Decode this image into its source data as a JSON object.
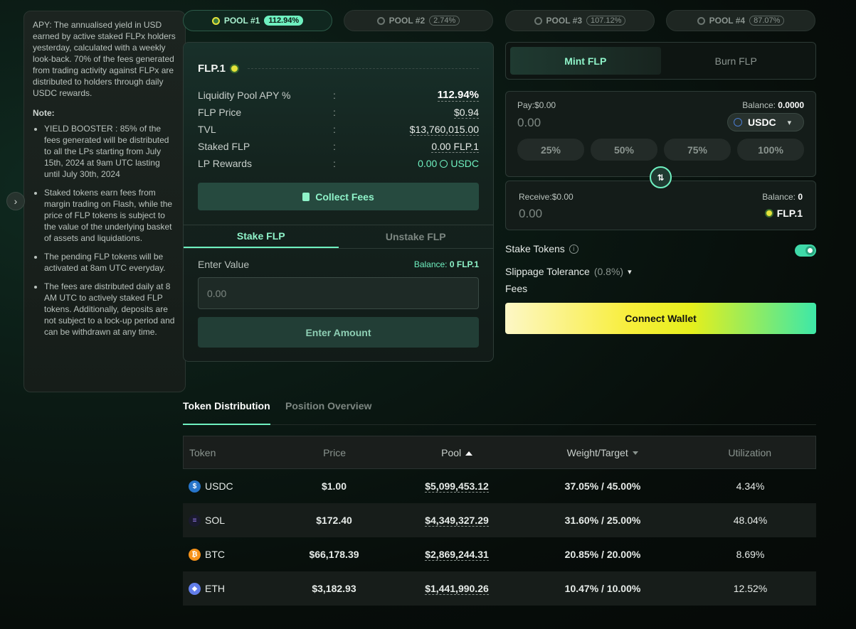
{
  "info": {
    "apy_text": "APY: The annualised yield in USD earned by active staked FLPx holders yesterday, calculated with a weekly look-back. 70% of the fees generated from trading activity against FLPx are distributed to holders through daily USDC rewards.",
    "note_title": "Note:",
    "notes": [
      "YIELD BOOSTER : 85% of the fees generated will be distributed to all the LPs starting from July 15th, 2024 at 9am UTC lasting until July 30th, 2024",
      "Staked tokens earn fees from margin trading on Flash, while the price of FLP tokens is subject to the value of the underlying basket of assets and liquidations.",
      "The pending FLP tokens will be activated at 8am UTC everyday.",
      "The fees are distributed daily at 8 AM UTC to actively staked FLP tokens. Additionally, deposits are not subject to a lock-up period and can be withdrawn at any time."
    ],
    "toggle_icon": "›"
  },
  "pools": [
    {
      "label": "POOL #1",
      "pct": "112.94%"
    },
    {
      "label": "POOL #2",
      "pct": "2.74%"
    },
    {
      "label": "POOL #3",
      "pct": "107.12%"
    },
    {
      "label": "POOL #4",
      "pct": "87.07%"
    }
  ],
  "flp": {
    "title": "FLP.1",
    "stats": [
      {
        "label": "Liquidity Pool APY %",
        "value": "112.94%"
      },
      {
        "label": "FLP Price",
        "value": "$0.94"
      },
      {
        "label": "TVL",
        "value": "$13,760,015.00"
      },
      {
        "label": "Staked FLP",
        "value": "0.00 FLP.1"
      },
      {
        "label": "LP Rewards",
        "value": "0.00",
        "unit": "USDC"
      }
    ],
    "colon": ":",
    "collect_label": "Collect Fees",
    "stake_tab": "Stake FLP",
    "unstake_tab": "Unstake FLP",
    "enter_value_label": "Enter Value",
    "balance_label": "Balance:",
    "balance_value": "0 FLP.1",
    "input_placeholder": "0.00",
    "enter_amount_label": "Enter Amount"
  },
  "mint": {
    "mint_tab": "Mint FLP",
    "burn_tab": "Burn FLP",
    "pay_label": "Pay:$0.00",
    "pay_balance_label": "Balance:",
    "pay_balance_value": "0.0000",
    "pay_amount": "0.00",
    "pay_token": "USDC",
    "percent_buttons": [
      "25%",
      "50%",
      "75%",
      "100%"
    ],
    "swap_icon": "⇅",
    "receive_label": "Receive:$0.00",
    "receive_balance_label": "Balance:",
    "receive_balance_value": "0",
    "receive_amount": "0.00",
    "receive_token": "FLP.1",
    "stake_tokens_label": "Stake Tokens",
    "slippage_label": "Slippage Tolerance",
    "slippage_value": "(0.8%)",
    "fees_label": "Fees",
    "connect_label": "Connect Wallet"
  },
  "distribution": {
    "tab_active": "Token Distribution",
    "tab_other": "Position Overview",
    "headers": {
      "token": "Token",
      "price": "Price",
      "pool": "Pool",
      "weight": "Weight/Target",
      "util": "Utilization"
    },
    "rows": [
      {
        "token": "USDC",
        "price": "$1.00",
        "pool": "$5,099,453.12",
        "weight": "37.05% / 45.00%",
        "util": "4.34%",
        "color": "#2775ca"
      },
      {
        "token": "SOL",
        "price": "$172.40",
        "pool": "$4,349,327.29",
        "weight": "31.60% / 25.00%",
        "util": "48.04%",
        "color": "#1a1a2e"
      },
      {
        "token": "BTC",
        "price": "$66,178.39",
        "pool": "$2,869,244.31",
        "weight": "20.85% / 20.00%",
        "util": "8.69%",
        "color": "#f7931a"
      },
      {
        "token": "ETH",
        "price": "$3,182.93",
        "pool": "$1,441,990.26",
        "weight": "10.47% / 10.00%",
        "util": "12.52%",
        "color": "#627eea"
      }
    ]
  },
  "colors": {
    "accent": "#6ff0c0",
    "background": "#070d0a"
  }
}
